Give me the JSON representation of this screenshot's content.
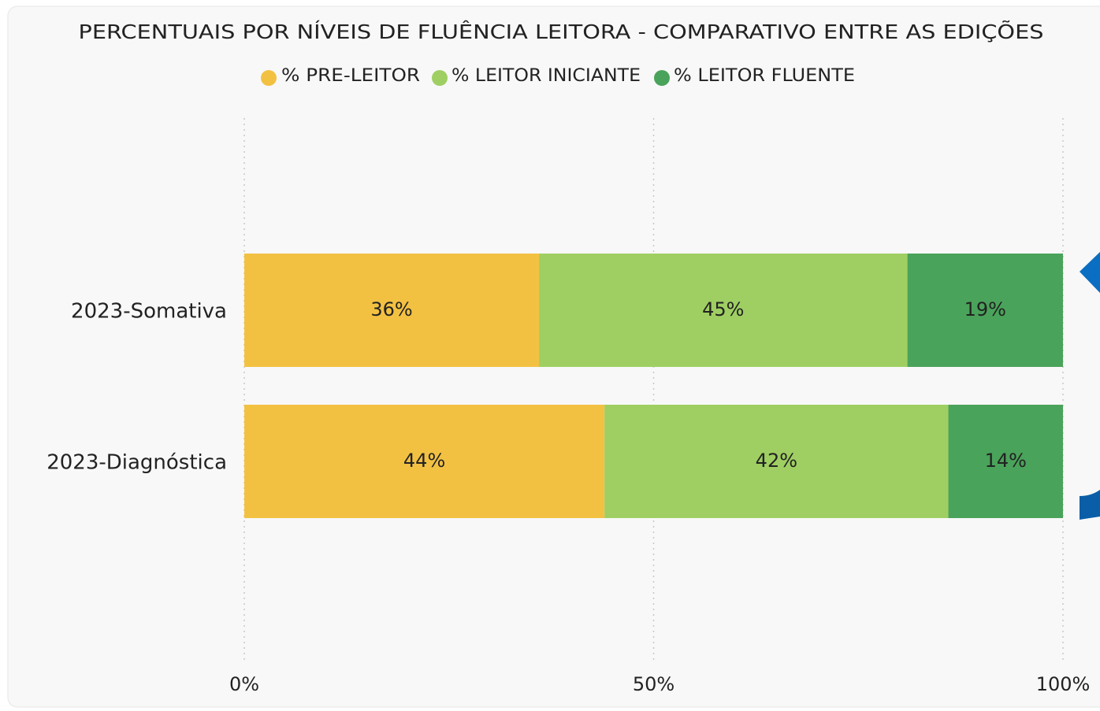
{
  "chart_data": {
    "type": "stacked_barh",
    "title": "PERCENTUAIS POR NÍVEIS DE FLUÊNCIA LEITORA - COMPARATIVO ENTRE AS EDIÇÕES",
    "categories": [
      "2023-Somativa",
      "2023-Diagnóstica"
    ],
    "series": [
      {
        "name": "% PRE-LEITOR",
        "color": "#f3c142",
        "values": [
          36,
          44
        ],
        "value_labels": [
          "36%",
          "44%"
        ]
      },
      {
        "name": "% LEITOR INICIANTE",
        "color": "#9fcf62",
        "values": [
          45,
          42
        ],
        "value_labels": [
          "45%",
          "42%"
        ]
      },
      {
        "name": "% LEITOR FLUENTE",
        "color": "#4aa35a",
        "values": [
          19,
          14
        ],
        "value_labels": [
          "19%",
          "14%"
        ]
      }
    ],
    "xlim": [
      0,
      100
    ],
    "xticks": [
      {
        "value": 0,
        "label": "0%"
      },
      {
        "value": 50,
        "label": "50%"
      },
      {
        "value": 100,
        "label": "100%"
      }
    ],
    "grid": true,
    "legend": "top"
  }
}
